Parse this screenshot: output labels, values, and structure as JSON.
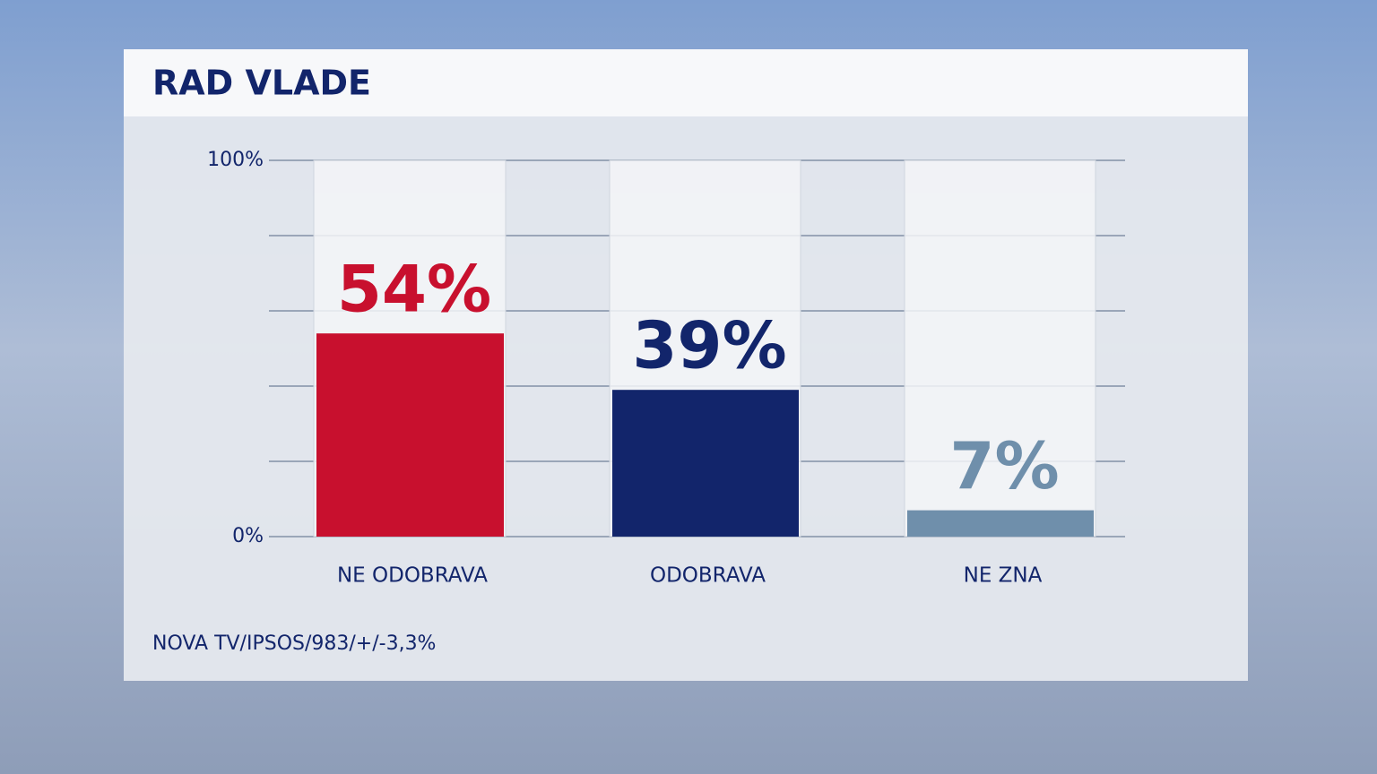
{
  "chart_data": {
    "type": "bar",
    "title": "RAD VLADE",
    "categories": [
      "NE ODOBRAVA",
      "ODOBRAVA",
      "NE ZNA"
    ],
    "values": [
      54,
      39,
      7
    ],
    "value_labels": [
      "54%",
      "39%",
      "7%"
    ],
    "colors": [
      "#c8102e",
      "#12256b",
      "#6f8fab"
    ],
    "ylim": [
      0,
      100
    ],
    "yticks": [
      {
        "value": 0,
        "label": "0%"
      },
      {
        "value": 20,
        "label": null
      },
      {
        "value": 40,
        "label": null
      },
      {
        "value": 60,
        "label": null
      },
      {
        "value": 80,
        "label": null
      },
      {
        "value": 100,
        "label": "100%"
      }
    ],
    "grid": true,
    "source": "NOVA TV/IPSOS/983/+/-3,3%"
  }
}
